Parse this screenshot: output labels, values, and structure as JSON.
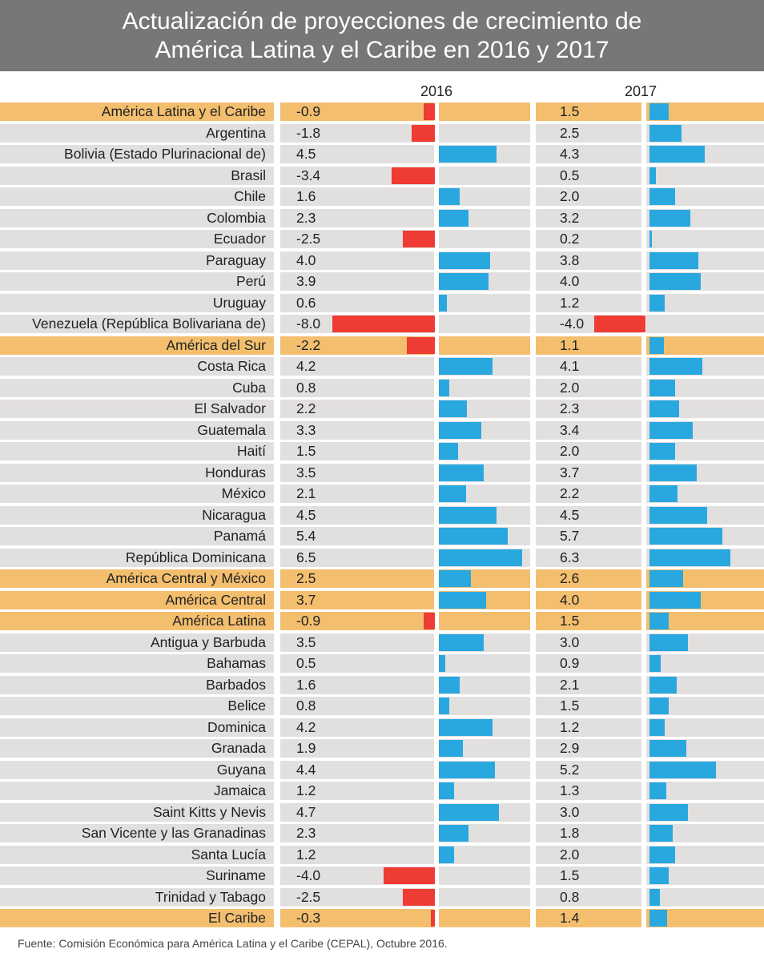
{
  "header": {
    "title_line1": "Actualización de proyecciones de crecimiento de",
    "title_line2": "América Latina y el Caribe en 2016 y 2017"
  },
  "colors": {
    "positive": "#29a8e0",
    "negative": "#ee3b34",
    "row_bg": "#e2dfdf",
    "aggregate_bg": "#f3bf6f",
    "header_bg": "#777777"
  },
  "chart_data": {
    "type": "bar",
    "orientation": "horizontal",
    "title": "Actualización de proyecciones de crecimiento de América Latina y el Caribe en 2016 y 2017",
    "series": [
      {
        "name": "2016",
        "key": "v2016"
      },
      {
        "name": "2017",
        "key": "v2017"
      }
    ],
    "rows": [
      {
        "label": "América Latina y el Caribe",
        "v2016": -0.9,
        "v2017": 1.5,
        "aggregate": true
      },
      {
        "label": "Argentina",
        "v2016": -1.8,
        "v2017": 2.5
      },
      {
        "label": "Bolivia (Estado Plurinacional de)",
        "v2016": 4.5,
        "v2017": 4.3
      },
      {
        "label": "Brasil",
        "v2016": -3.4,
        "v2017": 0.5
      },
      {
        "label": "Chile",
        "v2016": 1.6,
        "v2017": 2.0
      },
      {
        "label": "Colombia",
        "v2016": 2.3,
        "v2017": 3.2
      },
      {
        "label": "Ecuador",
        "v2016": -2.5,
        "v2017": 0.2
      },
      {
        "label": "Paraguay",
        "v2016": 4.0,
        "v2017": 3.8
      },
      {
        "label": "Perú",
        "v2016": 3.9,
        "v2017": 4.0
      },
      {
        "label": "Uruguay",
        "v2016": 0.6,
        "v2017": 1.2
      },
      {
        "label": "Venezuela (República Bolivariana de)",
        "v2016": -8.0,
        "v2017": -4.0
      },
      {
        "label": "América del Sur",
        "v2016": -2.2,
        "v2017": 1.1,
        "aggregate": true
      },
      {
        "label": "Costa Rica",
        "v2016": 4.2,
        "v2017": 4.1
      },
      {
        "label": "Cuba",
        "v2016": 0.8,
        "v2017": 2.0
      },
      {
        "label": "El Salvador",
        "v2016": 2.2,
        "v2017": 2.3
      },
      {
        "label": "Guatemala",
        "v2016": 3.3,
        "v2017": 3.4
      },
      {
        "label": "Haití",
        "v2016": 1.5,
        "v2017": 2.0
      },
      {
        "label": "Honduras",
        "v2016": 3.5,
        "v2017": 3.7
      },
      {
        "label": "México",
        "v2016": 2.1,
        "v2017": 2.2
      },
      {
        "label": "Nicaragua",
        "v2016": 4.5,
        "v2017": 4.5
      },
      {
        "label": "Panamá",
        "v2016": 5.4,
        "v2017": 5.7
      },
      {
        "label": "República Dominicana",
        "v2016": 6.5,
        "v2017": 6.3
      },
      {
        "label": "América Central y México",
        "v2016": 2.5,
        "v2017": 2.6,
        "aggregate": true
      },
      {
        "label": "América Central",
        "v2016": 3.7,
        "v2017": 4.0,
        "aggregate": true
      },
      {
        "label": "América Latina",
        "v2016": -0.9,
        "v2017": 1.5,
        "aggregate": true
      },
      {
        "label": "Antigua y Barbuda",
        "v2016": 3.5,
        "v2017": 3.0
      },
      {
        "label": "Bahamas",
        "v2016": 0.5,
        "v2017": 0.9
      },
      {
        "label": "Barbados",
        "v2016": 1.6,
        "v2017": 2.1
      },
      {
        "label": "Belice",
        "v2016": 0.8,
        "v2017": 1.5
      },
      {
        "label": "Dominica",
        "v2016": 4.2,
        "v2017": 1.2
      },
      {
        "label": "Granada",
        "v2016": 1.9,
        "v2017": 2.9
      },
      {
        "label": "Guyana",
        "v2016": 4.4,
        "v2017": 5.2
      },
      {
        "label": "Jamaica",
        "v2016": 1.2,
        "v2017": 1.3
      },
      {
        "label": "Saint Kitts y Nevis",
        "v2016": 4.7,
        "v2017": 3.0
      },
      {
        "label": "San Vicente y las Granadinas",
        "v2016": 2.3,
        "v2017": 1.8
      },
      {
        "label": "Santa Lucía",
        "v2016": 1.2,
        "v2017": 2.0
      },
      {
        "label": "Suriname",
        "v2016": -4.0,
        "v2017": 1.5
      },
      {
        "label": "Trinidad y Tabago",
        "v2016": -2.5,
        "v2017": 0.8
      },
      {
        "label": "El Caribe",
        "v2016": -0.3,
        "v2017": 1.4,
        "aggregate": true
      }
    ]
  },
  "source": "Fuente: Comisión Económica para América Latina y el Caribe (CEPAL), Octubre 2016."
}
